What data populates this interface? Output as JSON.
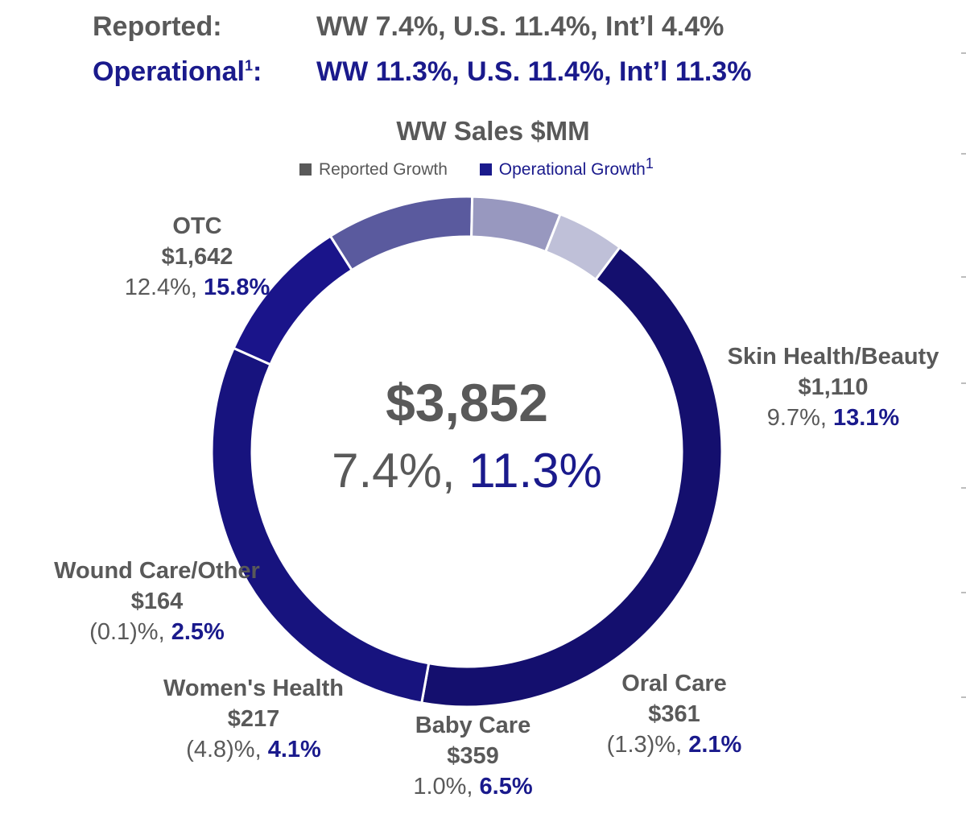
{
  "header": {
    "reported_label": "Reported:",
    "reported_value": "WW 7.4%, U.S. 11.4%, Int’l 4.4%",
    "operational_label": "Operational",
    "operational_sup": "1",
    "operational_colon": ":",
    "operational_value": "WW 11.3%, U.S. 11.4%, Int’l 11.3%"
  },
  "colors": {
    "reported": "#595959",
    "operational": "#1a1a8c"
  },
  "chart_data": {
    "type": "pie",
    "donut": true,
    "title": "WW Sales $MM",
    "unit": "$MM",
    "legend": {
      "placement": "top",
      "entries": [
        {
          "label": "Reported Growth",
          "color": "#595959"
        },
        {
          "label": "Operational Growth",
          "sup": "1",
          "color": "#1a1a8c"
        }
      ]
    },
    "total": {
      "value": 3852,
      "label": "$3,852",
      "reported": "7.4%",
      "operational": "11.3%"
    },
    "segments": [
      {
        "name": "OTC",
        "value": 1642,
        "value_label": "$1,642",
        "reported": "12.4%,",
        "operational": "15.8%",
        "color": "#140f6e"
      },
      {
        "name": "Skin Health/Beauty",
        "value": 1110,
        "value_label": "$1,110",
        "reported": "9.7%,",
        "operational": "13.1%",
        "color": "#17137e"
      },
      {
        "name": "Oral Care",
        "value": 361,
        "value_label": "$361",
        "reported": "(1.3)%,",
        "operational": "2.1%",
        "color": "#1a148a"
      },
      {
        "name": "Baby Care",
        "value": 359,
        "value_label": "$359",
        "reported": "1.0%,",
        "operational": "6.5%",
        "color": "#5a5a9e"
      },
      {
        "name": "Women's Health",
        "value": 217,
        "value_label": "$217",
        "reported": "(4.8)%,",
        "operational": "4.1%",
        "color": "#9898bf"
      },
      {
        "name": "Wound Care/Other",
        "value": 164,
        "value_label": "$164",
        "reported": "(0.1)%,",
        "operational": "2.5%",
        "color": "#bfc0d8"
      }
    ]
  }
}
